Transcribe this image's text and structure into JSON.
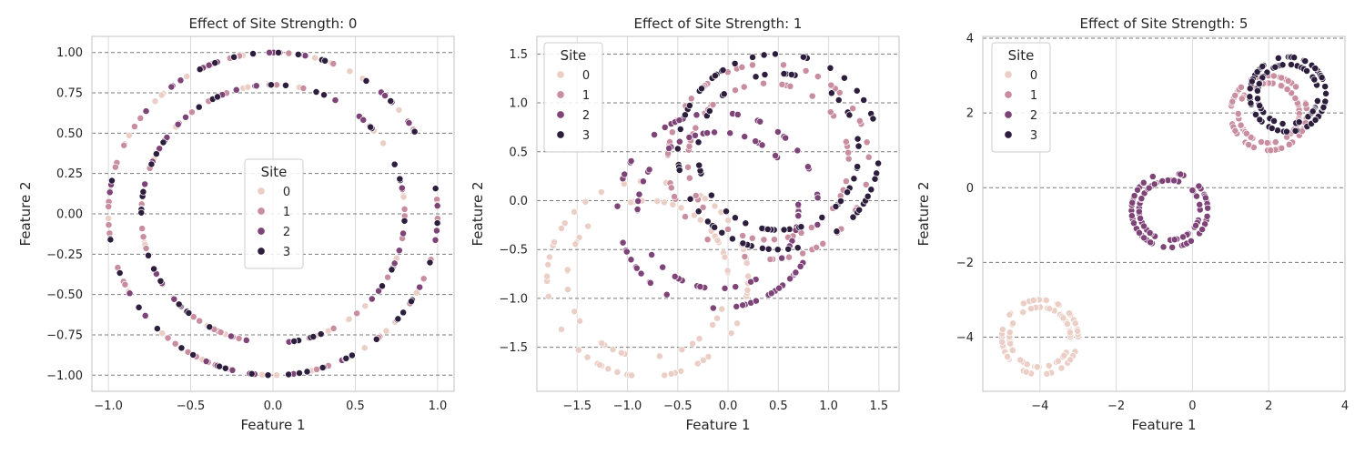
{
  "chart_data": [
    {
      "type": "scatter",
      "title": "Effect of Site Strength: 0",
      "xlabel": "Feature 1",
      "ylabel": "Feature 2",
      "xlim": [
        -1.1,
        1.1
      ],
      "ylim": [
        -1.1,
        1.1
      ],
      "xticks": [
        -1.0,
        -0.5,
        0.0,
        0.5,
        1.0
      ],
      "xtick_labels": [
        "−1.0",
        "−0.5",
        "0.0",
        "0.5",
        "1.0"
      ],
      "yticks": [
        -1.0,
        -0.75,
        -0.5,
        -0.25,
        0.0,
        0.25,
        0.5,
        0.75,
        1.0
      ],
      "ytick_labels": [
        "−1.00",
        "−0.75",
        "−0.50",
        "−0.25",
        "0.00",
        "0.25",
        "0.50",
        "0.75",
        "1.00"
      ],
      "grid": true,
      "legend": {
        "title": "Site",
        "position": "center"
      },
      "series": [
        {
          "name": "0",
          "color": "#ebcfc6",
          "rings": [
            {
              "cx": 0,
              "cy": 0,
              "r": 1.0,
              "points": 40
            },
            {
              "cx": 0,
              "cy": 0,
              "r": 0.8,
              "points": 35
            }
          ]
        },
        {
          "name": "1",
          "color": "#c98da0",
          "rings": [
            {
              "cx": 0,
              "cy": 0,
              "r": 1.0,
              "points": 40
            },
            {
              "cx": 0,
              "cy": 0,
              "r": 0.8,
              "points": 35
            }
          ]
        },
        {
          "name": "2",
          "color": "#7e4478",
          "rings": [
            {
              "cx": 0,
              "cy": 0,
              "r": 1.0,
              "points": 40
            },
            {
              "cx": 0,
              "cy": 0,
              "r": 0.8,
              "points": 35
            }
          ]
        },
        {
          "name": "3",
          "color": "#2d1e3e",
          "rings": [
            {
              "cx": 0,
              "cy": 0,
              "r": 1.0,
              "points": 40
            },
            {
              "cx": 0,
              "cy": 0,
              "r": 0.8,
              "points": 35
            }
          ]
        }
      ]
    },
    {
      "type": "scatter",
      "title": "Effect of Site Strength: 1",
      "xlabel": "Feature 1",
      "ylabel": "Feature 2",
      "xlim": [
        -1.9,
        1.7
      ],
      "ylim": [
        -1.95,
        1.68
      ],
      "xticks": [
        -1.5,
        -1.0,
        -0.5,
        0.0,
        0.5,
        1.0,
        1.5
      ],
      "xtick_labels": [
        "−1.5",
        "−1.0",
        "−0.5",
        "0.0",
        "0.5",
        "1.0",
        "1.5"
      ],
      "yticks": [
        -1.5,
        -1.0,
        -0.5,
        0.0,
        0.5,
        1.0,
        1.5
      ],
      "ytick_labels": [
        "−1.5",
        "−1.0",
        "−0.5",
        "0.0",
        "0.5",
        "1.0",
        "1.5"
      ],
      "grid": true,
      "legend": {
        "title": "Site",
        "position": "upper left"
      },
      "series": [
        {
          "name": "0",
          "color": "#ebcfc6",
          "rings": [
            {
              "cx": -0.8,
              "cy": -0.8,
              "r": 1.0,
              "points": 55
            },
            {
              "cx": -0.8,
              "cy": -0.8,
              "r": 0.8,
              "points": 45
            }
          ]
        },
        {
          "name": "1",
          "color": "#c98da0",
          "rings": [
            {
              "cx": 0.4,
              "cy": 0.4,
              "r": 1.0,
              "points": 55
            },
            {
              "cx": 0.4,
              "cy": 0.4,
              "r": 0.8,
              "points": 45
            }
          ]
        },
        {
          "name": "2",
          "color": "#7e4478",
          "rings": [
            {
              "cx": -0.1,
              "cy": -0.1,
              "r": 1.0,
              "points": 55
            },
            {
              "cx": -0.1,
              "cy": -0.1,
              "r": 0.8,
              "points": 45
            }
          ]
        },
        {
          "name": "3",
          "color": "#2d1e3e",
          "rings": [
            {
              "cx": 0.5,
              "cy": 0.5,
              "r": 1.0,
              "points": 55
            },
            {
              "cx": 0.5,
              "cy": 0.5,
              "r": 0.8,
              "points": 45
            }
          ]
        }
      ]
    },
    {
      "type": "scatter",
      "title": "Effect of Site Strength: 5",
      "xlabel": "Feature 1",
      "ylabel": "Feature 2",
      "xlim": [
        -5.5,
        4.0
      ],
      "ylim": [
        -5.45,
        4.05
      ],
      "xticks": [
        -4,
        -2,
        0,
        2,
        4
      ],
      "xtick_labels": [
        "−4",
        "−2",
        "0",
        "2",
        "4"
      ],
      "yticks": [
        -4,
        -2,
        0,
        2,
        4
      ],
      "ytick_labels": [
        "−4",
        "−2",
        "0",
        "2",
        "4"
      ],
      "grid": true,
      "legend": {
        "title": "Site",
        "position": "upper left"
      },
      "series": [
        {
          "name": "0",
          "color": "#ebcfc6",
          "rings": [
            {
              "cx": -4.0,
              "cy": -4.0,
              "r": 1.0,
              "points": 60
            },
            {
              "cx": -4.0,
              "cy": -4.0,
              "r": 0.8,
              "points": 50
            }
          ]
        },
        {
          "name": "1",
          "color": "#c98da0",
          "rings": [
            {
              "cx": 2.0,
              "cy": 2.0,
              "r": 1.0,
              "points": 60
            },
            {
              "cx": 2.0,
              "cy": 2.0,
              "r": 0.8,
              "points": 50
            }
          ]
        },
        {
          "name": "2",
          "color": "#7e4478",
          "rings": [
            {
              "cx": -0.6,
              "cy": -0.6,
              "r": 1.0,
              "points": 60
            },
            {
              "cx": -0.6,
              "cy": -0.6,
              "r": 0.8,
              "points": 50
            }
          ]
        },
        {
          "name": "3",
          "color": "#2d1e3e",
          "rings": [
            {
              "cx": 2.5,
              "cy": 2.5,
              "r": 1.0,
              "points": 60
            },
            {
              "cx": 2.5,
              "cy": 2.5,
              "r": 0.8,
              "points": 50
            }
          ]
        }
      ]
    }
  ]
}
